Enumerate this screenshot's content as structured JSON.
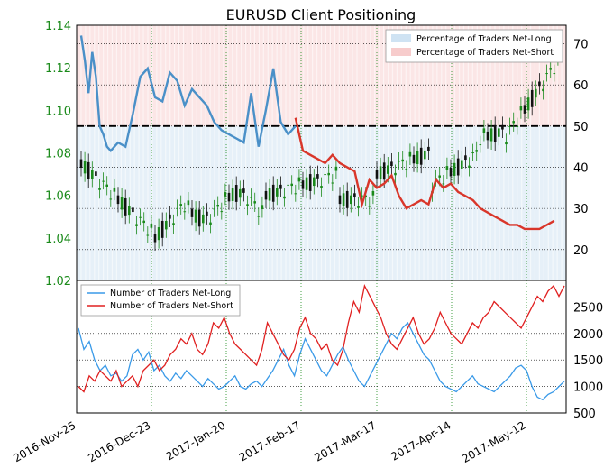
{
  "chart_data": [
    {
      "type": "line",
      "title": "EURUSD Client Positioning",
      "x_dates": [
        "2016-Nov-25",
        "2016-Dec-23",
        "2017-Jan-20",
        "2017-Feb-17",
        "2017-Mar-17",
        "2017-Apr-14",
        "2017-May-12"
      ],
      "left_axis": {
        "ticks": [
          "1.02",
          "1.04",
          "1.06",
          "1.08",
          "1.10",
          "1.12",
          "1.14"
        ],
        "ylim": [
          1.02,
          1.14
        ],
        "color": "#1a8a1a"
      },
      "right_axis": {
        "ticks": [
          "20",
          "30",
          "40",
          "50",
          "60",
          "70"
        ],
        "ylim": [
          12.5,
          74.5
        ]
      },
      "reference_line": 50,
      "legend": {
        "placement": "top-right",
        "entries": [
          "Percentage of Traders Net-Long",
          "Percentage of Traders Net-Short"
        ]
      },
      "series": [
        {
          "name": "Percentage of Traders Net-Long",
          "color": "#4a90c8",
          "values": [
            [
              0,
              72
            ],
            [
              1,
              66
            ],
            [
              2,
              58
            ],
            [
              3,
              68
            ],
            [
              4,
              62
            ],
            [
              5,
              50
            ],
            [
              6,
              48
            ],
            [
              7,
              45
            ],
            [
              8,
              44
            ],
            [
              10,
              46
            ],
            [
              12,
              45
            ],
            [
              14,
              53
            ],
            [
              16,
              62
            ],
            [
              18,
              64
            ],
            [
              20,
              57
            ],
            [
              22,
              56
            ],
            [
              24,
              63
            ],
            [
              26,
              61
            ],
            [
              28,
              55
            ],
            [
              30,
              59
            ],
            [
              32,
              57
            ],
            [
              34,
              55
            ],
            [
              36,
              51
            ],
            [
              38,
              49
            ],
            [
              40,
              48
            ],
            [
              42,
              47
            ],
            [
              44,
              46
            ],
            [
              46,
              58
            ],
            [
              48,
              45
            ],
            [
              50,
              54
            ],
            [
              52,
              64
            ],
            [
              54,
              51
            ],
            [
              56,
              48
            ],
            [
              58,
              50
            ]
          ]
        },
        {
          "name": "Percentage of Traders Net-Short",
          "color": "#d9362a",
          "values": [
            [
              58,
              52
            ],
            [
              60,
              44
            ],
            [
              62,
              43
            ],
            [
              64,
              42
            ],
            [
              66,
              41
            ],
            [
              68,
              43
            ],
            [
              70,
              41
            ],
            [
              72,
              40
            ],
            [
              74,
              39
            ],
            [
              76,
              31
            ],
            [
              78,
              37
            ],
            [
              80,
              35
            ],
            [
              82,
              36
            ],
            [
              84,
              38
            ],
            [
              86,
              33
            ],
            [
              88,
              30
            ],
            [
              90,
              31
            ],
            [
              92,
              32
            ],
            [
              94,
              31
            ],
            [
              96,
              37
            ],
            [
              98,
              35
            ],
            [
              100,
              36
            ],
            [
              102,
              34
            ],
            [
              104,
              33
            ],
            [
              106,
              32
            ],
            [
              108,
              30
            ],
            [
              110,
              29
            ],
            [
              112,
              28
            ],
            [
              114,
              27
            ],
            [
              116,
              26
            ],
            [
              118,
              26
            ],
            [
              120,
              25
            ],
            [
              122,
              25
            ],
            [
              124,
              25
            ],
            [
              126,
              26
            ],
            [
              128,
              27
            ]
          ]
        }
      ]
    },
    {
      "type": "line",
      "y_axis": {
        "ticks": [
          "500",
          "1000",
          "1500",
          "2000",
          "2500"
        ],
        "ylim": [
          500,
          3000
        ]
      },
      "legend": {
        "placement": "top-left",
        "entries": [
          "Number of Traders Net-Long",
          "Number of Traders Net-Short"
        ]
      },
      "series": [
        {
          "name": "Number of Traders Net-Long",
          "color": "#3a9ae8",
          "values": [
            2100,
            1700,
            1850,
            1500,
            1300,
            1400,
            1200,
            1250,
            1100,
            1200,
            1600,
            1700,
            1500,
            1650,
            1300,
            1400,
            1200,
            1100,
            1250,
            1150,
            1300,
            1200,
            1100,
            1000,
            1150,
            1050,
            950,
            1000,
            1100,
            1200,
            1000,
            950,
            1050,
            1100,
            1000,
            1150,
            1300,
            1500,
            1700,
            1400,
            1200,
            1600,
            1900,
            1700,
            1500,
            1300,
            1200,
            1400,
            1600,
            1750,
            1500,
            1300,
            1100,
            1000,
            1200,
            1400,
            1600,
            1800,
            2000,
            1900,
            2100,
            2200,
            2000,
            1800,
            1600,
            1500,
            1300,
            1100,
            1000,
            950,
            900,
            1000,
            1100,
            1200,
            1050,
            1000,
            950,
            900,
            1000,
            1100,
            1200,
            1350,
            1400,
            1300,
            1000,
            800,
            750,
            850,
            900,
            1000,
            1100
          ]
        },
        {
          "name": "Number of Traders Net-Short",
          "color": "#e02020",
          "values": [
            1000,
            900,
            1200,
            1100,
            1300,
            1200,
            1100,
            1300,
            1000,
            1100,
            1200,
            1000,
            1300,
            1400,
            1500,
            1300,
            1400,
            1600,
            1700,
            1900,
            1800,
            2000,
            1700,
            1600,
            1800,
            2200,
            2100,
            2300,
            2000,
            1800,
            1700,
            1600,
            1500,
            1400,
            1700,
            2200,
            2000,
            1800,
            1600,
            1500,
            1700,
            2100,
            2300,
            2000,
            1900,
            1700,
            1800,
            1500,
            1400,
            1700,
            2200,
            2600,
            2400,
            2900,
            2700,
            2500,
            2300,
            2000,
            1800,
            1700,
            1900,
            2100,
            2300,
            2000,
            1800,
            1900,
            2100,
            2400,
            2200,
            2000,
            1900,
            1800,
            2000,
            2200,
            2100,
            2300,
            2400,
            2600,
            2500,
            2400,
            2300,
            2200,
            2100,
            2300,
            2500,
            2700,
            2600,
            2800,
            2900,
            2700,
            2900
          ]
        }
      ]
    }
  ]
}
